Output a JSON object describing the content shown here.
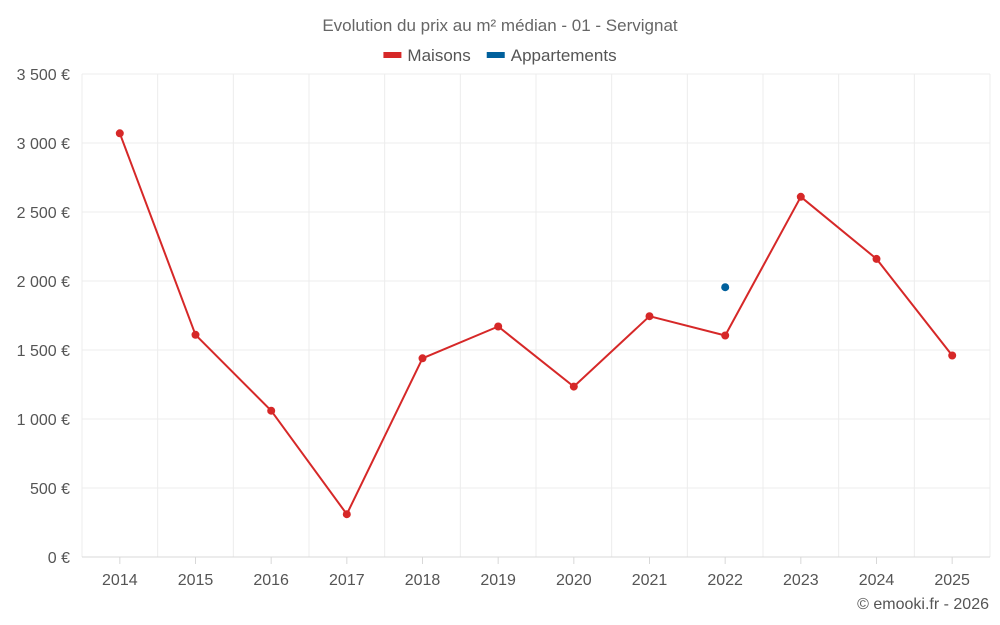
{
  "chart_data": {
    "type": "line",
    "title": "Evolution du prix au m² médian - 01 - Servignat",
    "categories": [
      "2014",
      "2015",
      "2016",
      "2017",
      "2018",
      "2019",
      "2020",
      "2021",
      "2022",
      "2023",
      "2024",
      "2025"
    ],
    "series": [
      {
        "name": "Maisons",
        "color": "#d62828",
        "values": [
          3070,
          1610,
          1060,
          310,
          1440,
          1670,
          1235,
          1745,
          1605,
          2610,
          2160,
          1460
        ]
      },
      {
        "name": "Appartements",
        "color": "#00609c",
        "values": [
          null,
          null,
          null,
          null,
          null,
          null,
          null,
          null,
          1955,
          null,
          null,
          null
        ]
      }
    ],
    "ylim": [
      0,
      3500
    ],
    "yticks": [
      0,
      500,
      1000,
      1500,
      2000,
      2500,
      3000,
      3500
    ],
    "ytick_labels": [
      "0 €",
      "500 €",
      "1 000 €",
      "1 500 €",
      "2 000 €",
      "2 500 €",
      "3 000 €",
      "3 500 €"
    ],
    "xlabel": "",
    "ylabel": "",
    "grid": true,
    "legend": "top-center"
  },
  "credit": "© emooki.fr - 2026"
}
